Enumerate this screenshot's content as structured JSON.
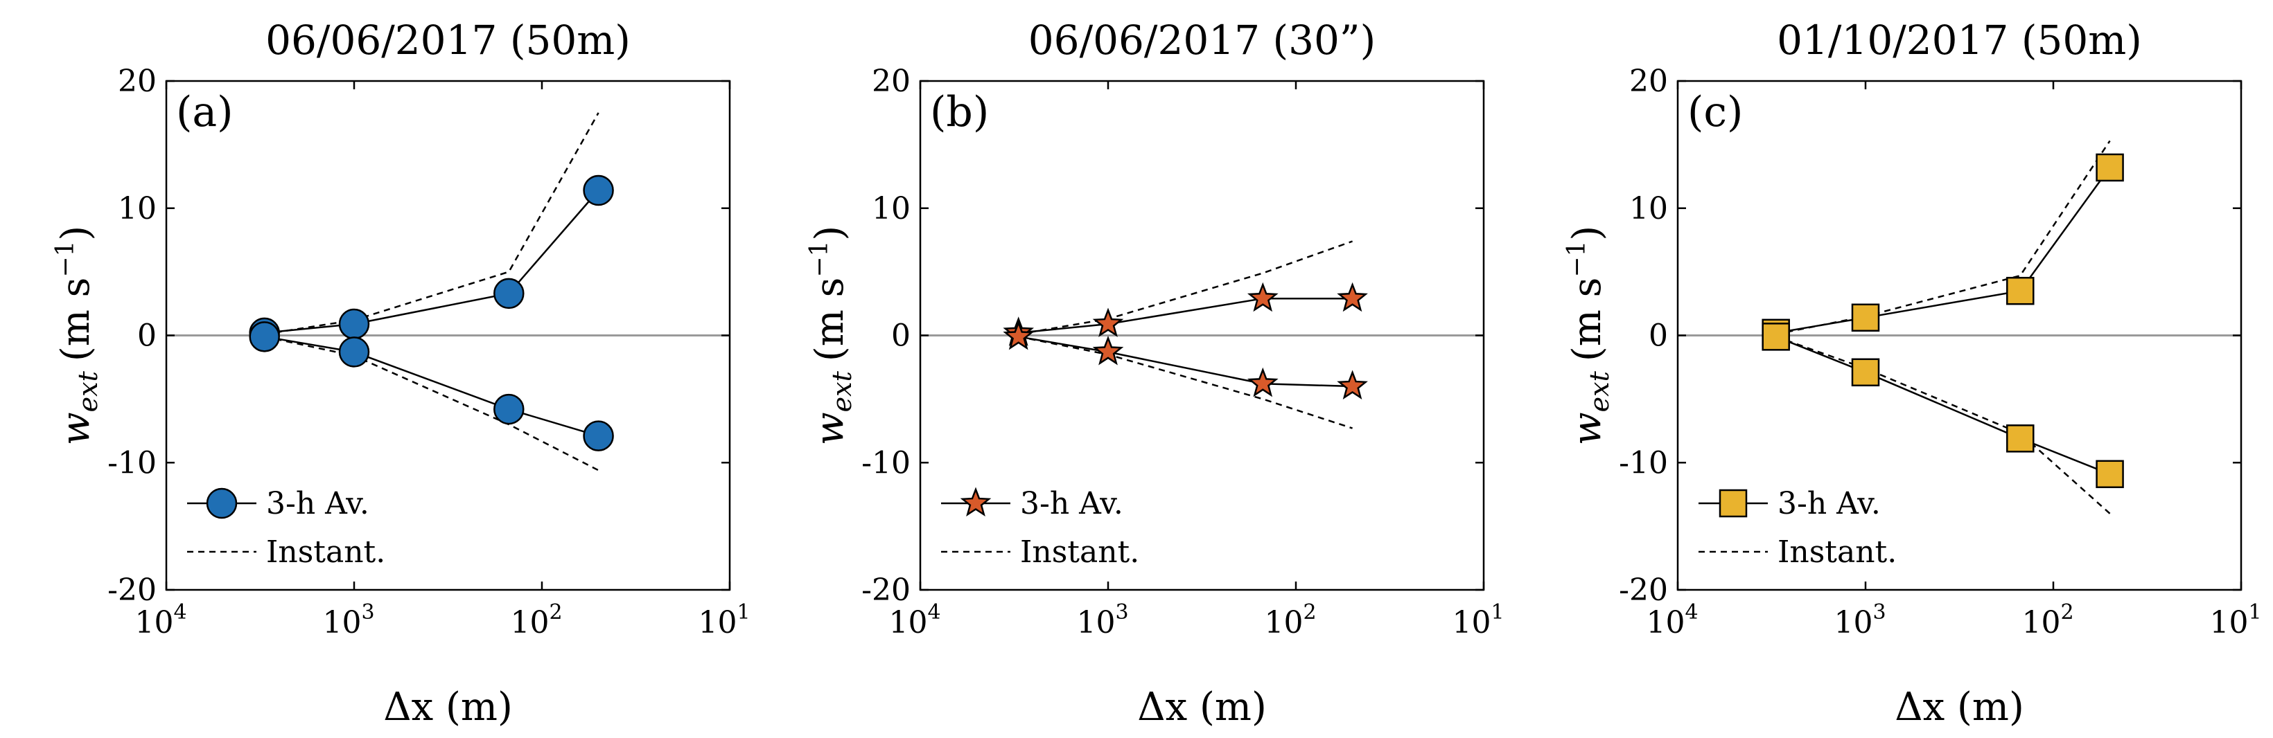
{
  "chart_data": [
    {
      "type": "line",
      "title": "06/06/2017 (50m)",
      "panel_label": "(a)",
      "xlabel": "Δx (m)",
      "ylabel_main": "w",
      "ylabel_sub": "ext",
      "ylabel_unit": "(m s",
      "ylabel_exp": "−1",
      "ylabel_close": ")",
      "xscale": "log",
      "xaxis_reversed": true,
      "xlim": [
        10,
        10000
      ],
      "ylim": [
        -20,
        20
      ],
      "yticks": [
        -20,
        -10,
        0,
        10,
        20
      ],
      "ytick_labels": [
        "-20",
        "-10",
        "0",
        "10",
        "20"
      ],
      "xticks": [
        10000,
        1000,
        100,
        10
      ],
      "xtick_labels": [
        {
          "base": "10",
          "exp": "4"
        },
        {
          "base": "10",
          "exp": "3"
        },
        {
          "base": "10",
          "exp": "2"
        },
        {
          "base": "10",
          "exp": "1"
        }
      ],
      "marker": "circle",
      "marker_color": "#1f6fb4",
      "legend": {
        "position": "bottom-left",
        "entries": [
          "3-h Av.",
          "Instant."
        ]
      },
      "x": [
        3000,
        1000,
        150,
        50
      ],
      "series": [
        {
          "name": "3-h Av.",
          "style": "solid-marker",
          "values": [
            0.2,
            0.9,
            3.3,
            11.4
          ]
        },
        {
          "name": "3-h Av.",
          "style": "solid-marker",
          "values": [
            -0.1,
            -1.3,
            -5.8,
            -7.9
          ]
        },
        {
          "name": "Instant.",
          "style": "dashed",
          "values": [
            0.1,
            1.2,
            5.0,
            17.5
          ]
        },
        {
          "name": "Instant.",
          "style": "dashed",
          "values": [
            -0.1,
            -1.6,
            -7.0,
            -10.6
          ]
        }
      ]
    },
    {
      "type": "line",
      "title": "06/06/2017 (30”)",
      "panel_label": "(b)",
      "xlabel": "Δx (m)",
      "ylabel_main": "w",
      "ylabel_sub": "ext",
      "ylabel_unit": "(m s",
      "ylabel_exp": "−1",
      "ylabel_close": ")",
      "xscale": "log",
      "xaxis_reversed": true,
      "xlim": [
        10,
        10000
      ],
      "ylim": [
        -20,
        20
      ],
      "yticks": [
        -20,
        -10,
        0,
        10,
        20
      ],
      "ytick_labels": [
        "-20",
        "-10",
        "0",
        "10",
        "20"
      ],
      "xticks": [
        10000,
        1000,
        100,
        10
      ],
      "xtick_labels": [
        {
          "base": "10",
          "exp": "4"
        },
        {
          "base": "10",
          "exp": "3"
        },
        {
          "base": "10",
          "exp": "2"
        },
        {
          "base": "10",
          "exp": "1"
        }
      ],
      "marker": "star",
      "marker_color": "#d85a2a",
      "legend": {
        "position": "bottom-left",
        "entries": [
          "3-h Av.",
          "Instant."
        ]
      },
      "x": [
        3000,
        1000,
        150,
        50
      ],
      "series": [
        {
          "name": "3-h Av.",
          "style": "solid-marker",
          "values": [
            0.2,
            0.9,
            2.9,
            2.9
          ]
        },
        {
          "name": "3-h Av.",
          "style": "solid-marker",
          "values": [
            -0.1,
            -1.3,
            -3.8,
            -4.0
          ]
        },
        {
          "name": "Instant.",
          "style": "dashed",
          "values": [
            0.1,
            1.3,
            4.9,
            7.4
          ]
        },
        {
          "name": "Instant.",
          "style": "dashed",
          "values": [
            -0.1,
            -1.5,
            -5.0,
            -7.3
          ]
        }
      ]
    },
    {
      "type": "line",
      "title": "01/10/2017 (50m)",
      "panel_label": "(c)",
      "xlabel": "Δx (m)",
      "ylabel_main": "w",
      "ylabel_sub": "ext",
      "ylabel_unit": "(m s",
      "ylabel_exp": "−1",
      "ylabel_close": ")",
      "xscale": "log",
      "xaxis_reversed": true,
      "xlim": [
        10,
        10000
      ],
      "ylim": [
        -20,
        20
      ],
      "yticks": [
        -20,
        -10,
        0,
        10,
        20
      ],
      "ytick_labels": [
        "-20",
        "-10",
        "0",
        "10",
        "20"
      ],
      "xticks": [
        10000,
        1000,
        100,
        10
      ],
      "xtick_labels": [
        {
          "base": "10",
          "exp": "4"
        },
        {
          "base": "10",
          "exp": "3"
        },
        {
          "base": "10",
          "exp": "2"
        },
        {
          "base": "10",
          "exp": "1"
        }
      ],
      "marker": "square",
      "marker_color": "#e9b32e",
      "legend": {
        "position": "bottom-left",
        "entries": [
          "3-h Av.",
          "Instant."
        ]
      },
      "x": [
        3000,
        1000,
        150,
        50
      ],
      "series": [
        {
          "name": "3-h Av.",
          "style": "solid-marker",
          "values": [
            0.2,
            1.4,
            3.5,
            13.2
          ]
        },
        {
          "name": "3-h Av.",
          "style": "solid-marker",
          "values": [
            -0.1,
            -2.9,
            -8.1,
            -10.9
          ]
        },
        {
          "name": "Instant.",
          "style": "dashed",
          "values": [
            0.1,
            1.5,
            4.7,
            15.3
          ]
        },
        {
          "name": "Instant.",
          "style": "dashed",
          "values": [
            -0.1,
            -2.6,
            -7.7,
            -14.0
          ]
        }
      ]
    }
  ]
}
